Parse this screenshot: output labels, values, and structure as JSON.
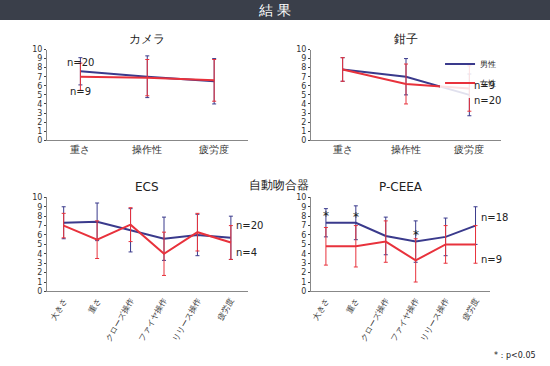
{
  "title": "結 果",
  "group_label": "自動吻合器",
  "footnote": "*：p<0.05",
  "chart_data": [
    {
      "type": "line",
      "title": "カメラ",
      "categories": [
        "重さ",
        "操作性",
        "疲労度"
      ],
      "series": [
        {
          "name": "男性",
          "color": "#3a3a8c",
          "values": [
            7.6,
            7.0,
            6.5
          ],
          "error": [
            1.5,
            2.3,
            2.5
          ]
        },
        {
          "name": "女性",
          "color": "#e8323c",
          "values": [
            7.0,
            6.9,
            6.6
          ],
          "error": [
            1.5,
            2.0,
            2.3
          ]
        }
      ],
      "ylim": [
        0,
        10
      ],
      "yticks": [
        0,
        1,
        2,
        3,
        4,
        5,
        6,
        7,
        8,
        9,
        10
      ],
      "grid": false,
      "annotations": [
        {
          "text": "n=20",
          "x": "重さ",
          "y": 8.6
        },
        {
          "text": "n=9",
          "x": "重さ",
          "y": 5.4
        }
      ]
    },
    {
      "type": "line",
      "title": "鉗子",
      "categories": [
        "重さ",
        "操作性",
        "疲労度"
      ],
      "series": [
        {
          "name": "男性",
          "color": "#3a3a8c",
          "values": [
            7.8,
            7.0,
            5.0
          ],
          "error": [
            1.3,
            2.0,
            2.3
          ]
        },
        {
          "name": "女性",
          "color": "#e8323c",
          "values": [
            7.8,
            6.2,
            5.7
          ],
          "error": [
            1.3,
            2.2,
            2.5
          ]
        }
      ],
      "ylim": [
        0,
        10
      ],
      "yticks": [
        0,
        1,
        2,
        3,
        4,
        5,
        6,
        7,
        8,
        9,
        10
      ],
      "grid": false,
      "legend": "upper right",
      "annotations": [
        {
          "text": "n=9",
          "x": "疲労度",
          "y": 6.0
        },
        {
          "text": "n=20",
          "x": "疲労度",
          "y": 4.4
        }
      ]
    },
    {
      "type": "line",
      "title": "ECS",
      "categories": [
        "大きさ",
        "重さ",
        "クローズ操作",
        "ファイヤ操作",
        "リリース操作",
        "疲労度"
      ],
      "series": [
        {
          "name": "男性",
          "color": "#3a3a8c",
          "values": [
            7.3,
            7.4,
            6.5,
            5.6,
            6.0,
            5.7
          ],
          "error": [
            1.7,
            2.0,
            2.3,
            2.3,
            2.2,
            2.3
          ]
        },
        {
          "name": "女性",
          "color": "#e8323c",
          "values": [
            7.0,
            5.5,
            7.1,
            4.0,
            6.3,
            5.2
          ],
          "error": [
            1.3,
            2.0,
            1.8,
            2.3,
            2.0,
            1.8
          ]
        }
      ],
      "ylim": [
        0,
        10
      ],
      "yticks": [
        0,
        1,
        2,
        3,
        4,
        5,
        6,
        7,
        8,
        9,
        10
      ],
      "grid": false,
      "annotations": [
        {
          "text": "n=20",
          "x": "疲労度",
          "y": 7.0
        },
        {
          "text": "n=4",
          "x": "疲労度",
          "y": 4.1
        }
      ]
    },
    {
      "type": "line",
      "title": "P-CEEA",
      "categories": [
        "大きさ",
        "重さ",
        "クローズ操作",
        "ファイヤ操作",
        "リリース操作",
        "疲労度"
      ],
      "series": [
        {
          "name": "男性",
          "color": "#3a3a8c",
          "values": [
            7.3,
            7.3,
            5.9,
            5.3,
            5.8,
            7.0
          ],
          "error": [
            1.5,
            1.8,
            2.0,
            2.2,
            2.0,
            2.0
          ]
        },
        {
          "name": "女性",
          "color": "#e8323c",
          "values": [
            4.8,
            4.8,
            5.3,
            3.3,
            5.0,
            5.0
          ],
          "error": [
            2.0,
            2.2,
            2.2,
            2.3,
            2.0,
            2.0
          ]
        }
      ],
      "ylim": [
        0,
        10
      ],
      "yticks": [
        0,
        1,
        2,
        3,
        4,
        5,
        6,
        7,
        8,
        9,
        10
      ],
      "grid": false,
      "annotations": [
        {
          "text": "*",
          "x": "大きさ",
          "y": 8.0
        },
        {
          "text": "*",
          "x": "重さ",
          "y": 7.9
        },
        {
          "text": "*",
          "x": "ファイヤ操作",
          "y": 6.0
        },
        {
          "text": "n=18",
          "x": "疲労度",
          "y": 7.9
        },
        {
          "text": "n=9",
          "x": "疲労度",
          "y": 3.4
        }
      ]
    }
  ]
}
